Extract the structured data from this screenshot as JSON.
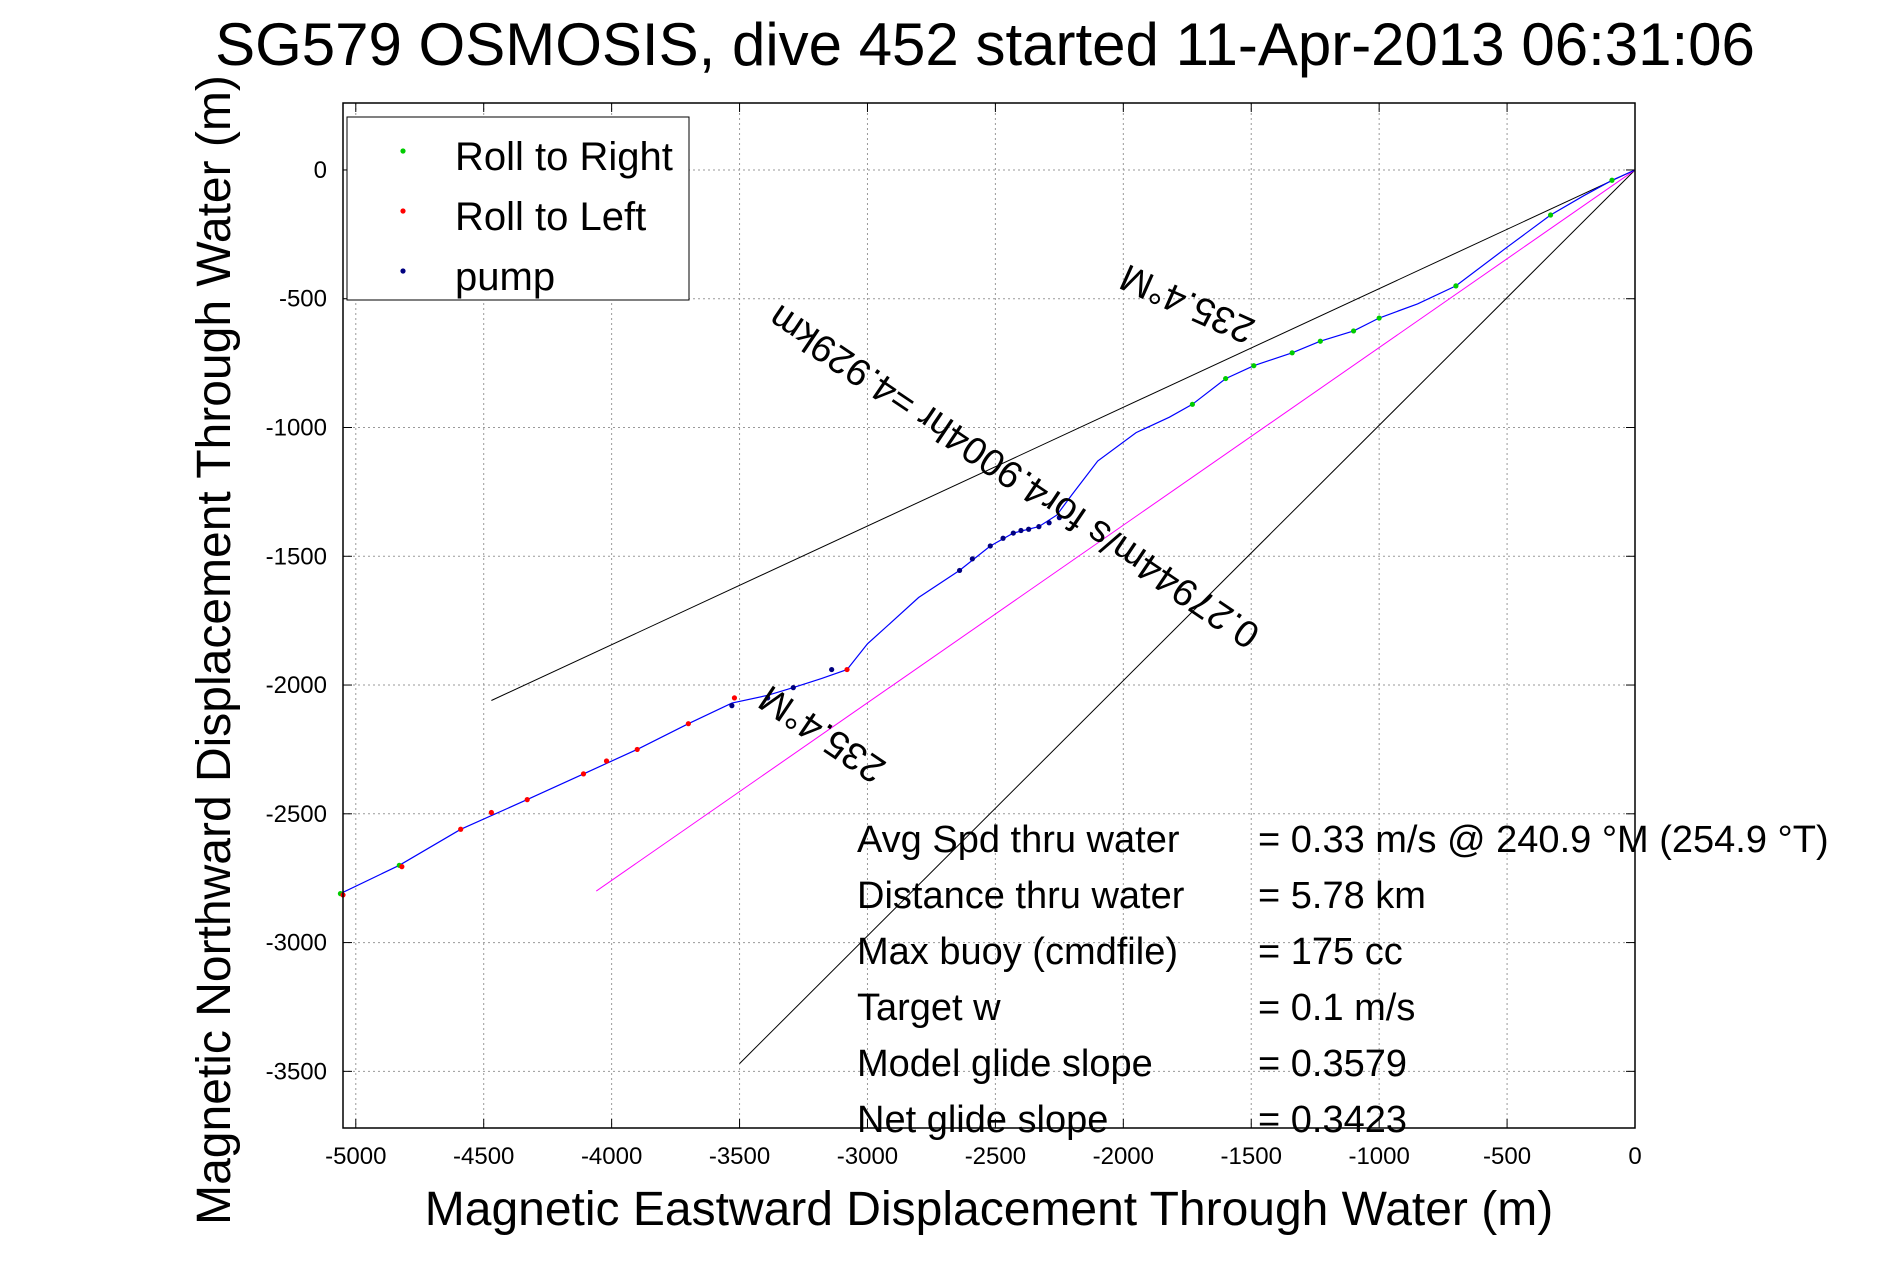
{
  "chart_data": {
    "type": "scatter",
    "title": "SG579 OSMOSIS, dive 452 started 11-Apr-2013 06:31:06",
    "xlabel": "Magnetic Eastward Displacement Through Water (m)",
    "ylabel": "Magnetic Northward Displacement Through Water (m)",
    "xlim": [
      -5050,
      0
    ],
    "ylim": [
      -3720,
      260
    ],
    "xticks": [
      -5000,
      -4500,
      -4000,
      -3500,
      -3000,
      -2500,
      -2000,
      -1500,
      -1000,
      -500,
      0
    ],
    "yticks": [
      0,
      -500,
      -1000,
      -1500,
      -2000,
      -2500,
      -3000,
      -3500
    ],
    "xtick_labels": [
      "-5000",
      "-4500",
      "-4000",
      "-3500",
      "-3000",
      "-2500",
      "-2000",
      "-1500",
      "-1000",
      "-500",
      "0"
    ],
    "ytick_labels": [
      "0",
      "-500",
      "-1000",
      "-1500",
      "-2000",
      "-2500",
      "-3000",
      "-3500"
    ],
    "grid": true,
    "legend_position": "top-left",
    "colors": {
      "track": "#0000ff",
      "roll_right": "#00cc00",
      "roll_left": "#ff0000",
      "pump": "#000080",
      "reference_lines": "#000000",
      "model_line": "#ff00ff"
    },
    "series": [
      {
        "name": "Roll to Right",
        "color": "#00cc00",
        "points": [
          [
            -90,
            -40
          ],
          [
            -330,
            -175
          ],
          [
            -700,
            -450
          ],
          [
            -1000,
            -575
          ],
          [
            -1100,
            -625
          ],
          [
            -1230,
            -665
          ],
          [
            -1340,
            -710
          ],
          [
            -1490,
            -760
          ],
          [
            -1600,
            -810
          ],
          [
            -1730,
            -910
          ],
          [
            -4830,
            -2700
          ],
          [
            -5060,
            -2810
          ]
        ]
      },
      {
        "name": "Roll to Left",
        "color": "#ff0000",
        "points": [
          [
            -3080,
            -1940
          ],
          [
            -3520,
            -2050
          ],
          [
            -3700,
            -2150
          ],
          [
            -3900,
            -2250
          ],
          [
            -4020,
            -2295
          ],
          [
            -4110,
            -2345
          ],
          [
            -4330,
            -2445
          ],
          [
            -4470,
            -2495
          ],
          [
            -4590,
            -2560
          ],
          [
            -4820,
            -2705
          ],
          [
            -5050,
            -2815
          ]
        ]
      },
      {
        "name": "pump",
        "color": "#000080",
        "points": [
          [
            -2250,
            -1350
          ],
          [
            -2290,
            -1370
          ],
          [
            -2330,
            -1385
          ],
          [
            -2370,
            -1395
          ],
          [
            -2400,
            -1400
          ],
          [
            -2430,
            -1410
          ],
          [
            -2470,
            -1430
          ],
          [
            -2520,
            -1460
          ],
          [
            -2590,
            -1510
          ],
          [
            -2640,
            -1555
          ],
          [
            -3140,
            -1940
          ],
          [
            -3290,
            -2010
          ],
          [
            -3390,
            -2050
          ],
          [
            -3530,
            -2080
          ]
        ]
      },
      {
        "name": "track",
        "color": "#0000ff",
        "points": [
          [
            0,
            0
          ],
          [
            -90,
            -40
          ],
          [
            -200,
            -100
          ],
          [
            -330,
            -175
          ],
          [
            -500,
            -300
          ],
          [
            -700,
            -450
          ],
          [
            -850,
            -520
          ],
          [
            -1000,
            -575
          ],
          [
            -1100,
            -625
          ],
          [
            -1230,
            -665
          ],
          [
            -1340,
            -710
          ],
          [
            -1490,
            -760
          ],
          [
            -1600,
            -810
          ],
          [
            -1730,
            -910
          ],
          [
            -1820,
            -960
          ],
          [
            -1950,
            -1020
          ],
          [
            -2100,
            -1130
          ],
          [
            -2200,
            -1260
          ],
          [
            -2260,
            -1340
          ],
          [
            -2330,
            -1385
          ],
          [
            -2430,
            -1410
          ],
          [
            -2520,
            -1460
          ],
          [
            -2640,
            -1555
          ],
          [
            -2800,
            -1660
          ],
          [
            -2900,
            -1750
          ],
          [
            -3000,
            -1840
          ],
          [
            -3080,
            -1940
          ],
          [
            -3180,
            -1975
          ],
          [
            -3290,
            -2010
          ],
          [
            -3390,
            -2040
          ],
          [
            -3530,
            -2070
          ],
          [
            -3700,
            -2150
          ],
          [
            -3900,
            -2250
          ],
          [
            -4110,
            -2345
          ],
          [
            -4330,
            -2445
          ],
          [
            -4590,
            -2560
          ],
          [
            -4830,
            -2700
          ],
          [
            -5060,
            -2810
          ]
        ]
      }
    ],
    "reference_lines": [
      {
        "from": [
          0,
          0
        ],
        "to": [
          -4470,
          -2060
        ],
        "color": "#000000"
      },
      {
        "from": [
          0,
          0
        ],
        "to": [
          -3500,
          -3470
        ],
        "color": "#000000"
      },
      {
        "from": [
          0,
          0
        ],
        "to": [
          -4060,
          -2800
        ],
        "color": "#ff00ff"
      }
    ],
    "line_labels": [
      {
        "text": "235.4°M",
        "x": -1730,
        "y": -475,
        "angle": 204
      },
      {
        "text": "0.27944m/s for4.9004hr =4.929km",
        "x": -2400,
        "y": -1150,
        "angle": 214
      },
      {
        "text": "235.4°M",
        "x": -3150,
        "y": -2150,
        "angle": 214
      }
    ],
    "annotations": [
      {
        "label": "Avg Spd thru water",
        "value": "=  0.33 m/s @ 240.9 °M (254.9 °T)"
      },
      {
        "label": "Distance thru water",
        "value": "=  5.78 km"
      },
      {
        "label": "Max buoy (cmdfile)",
        "value": "= 175 cc"
      },
      {
        "label": "Target w",
        "value": "= 0.1 m/s"
      },
      {
        "label": "Model glide slope",
        "value": "= 0.3579"
      },
      {
        "label": "Net glide slope",
        "value": "= 0.3423"
      }
    ]
  }
}
